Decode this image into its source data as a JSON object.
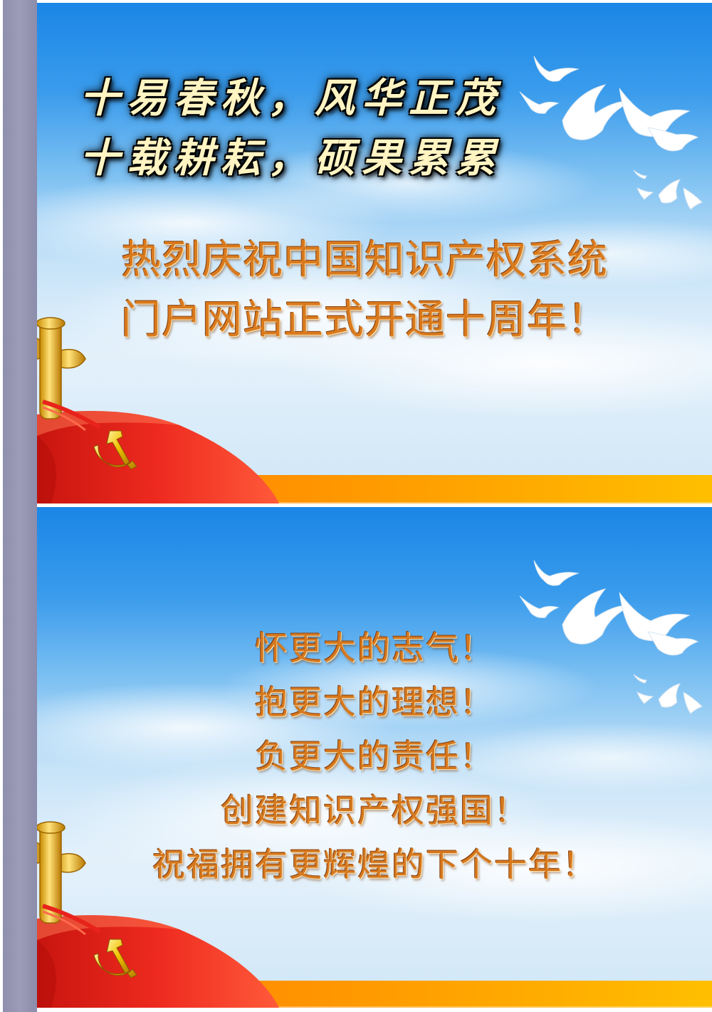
{
  "slide1": {
    "poem_line1": "十易春秋，风华正茂",
    "poem_line2": "十载耕耘，硕果累累",
    "headline_line1": "热烈庆祝中国知识产权系统",
    "headline_line2": "门户网站正式开通十周年！"
  },
  "slide2": {
    "lines": [
      "怀更大的志气！",
      "抱更大的理想！",
      "负更大的责任！",
      "创建知识产权强国！",
      "祝福拥有更辉煌的下个十年！"
    ]
  },
  "colors": {
    "sky_top": "#1a86e6",
    "band": "#ff9400",
    "flag_red": "#e8231b",
    "emblem_gold": "#f5c400",
    "text_orange": "#d97a1e",
    "side_bar": "#9c9cb8"
  },
  "icons": [
    "huabiao-pillar-icon",
    "party-flag-icon",
    "hammer-sickle-icon",
    "dove-flock-icon"
  ]
}
